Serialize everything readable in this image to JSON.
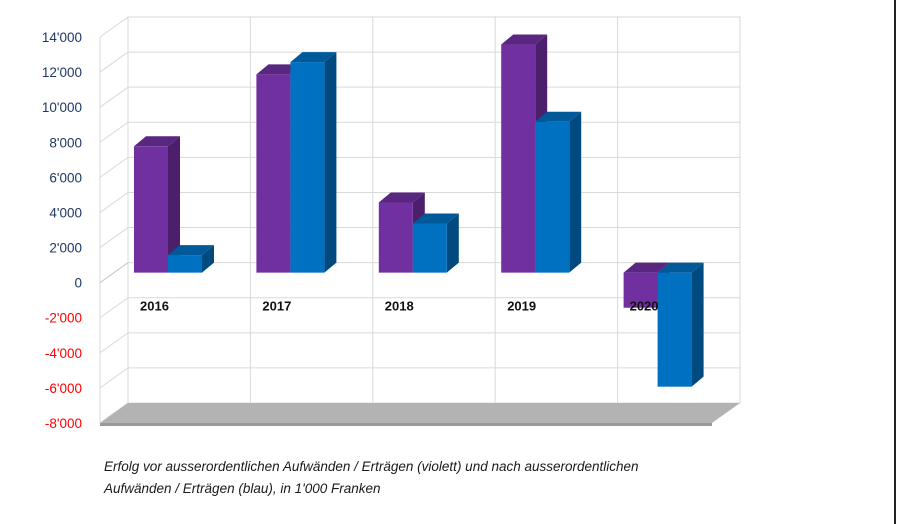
{
  "chart_data": {
    "type": "bar",
    "categories": [
      "2016",
      "2017",
      "2018",
      "2019",
      "2020"
    ],
    "series": [
      {
        "values": [
          7200,
          11300,
          4000,
          13000,
          -2000
        ]
      },
      {
        "values": [
          1000,
          12000,
          2800,
          8600,
          -6500
        ]
      }
    ],
    "ylim": [
      -8000,
      14000
    ],
    "yticks": [
      {
        "value": 14000,
        "label": "14'000"
      },
      {
        "value": 12000,
        "label": "12'000"
      },
      {
        "value": 10000,
        "label": "10'000"
      },
      {
        "value": 8000,
        "label": "8'000"
      },
      {
        "value": 6000,
        "label": "6'000"
      },
      {
        "value": 4000,
        "label": "4'000"
      },
      {
        "value": 2000,
        "label": "2'000"
      },
      {
        "value": 0,
        "label": "0"
      },
      {
        "value": -2000,
        "label": "-2'000"
      },
      {
        "value": -4000,
        "label": "-4'000"
      },
      {
        "value": -6000,
        "label": "-6'000"
      },
      {
        "value": -8000,
        "label": "-8'000"
      }
    ],
    "grid": true,
    "colors": {
      "series_front": [
        "#7030a0",
        "#0070c0"
      ],
      "series_top": [
        "#5a2780",
        "#005a9a"
      ],
      "series_side": [
        "#4b1f6b",
        "#004a80"
      ],
      "positive_tick": "#1f3864",
      "negative_tick": "#ff0000",
      "floor": "#b3b3b3"
    },
    "caption_lines": [
      "Erfolg vor ausserordentlichen Aufwänden / Erträgen (violett) und nach ausserordentlichen",
      "Aufwänden / Erträgen (blau), in 1'000 Franken"
    ]
  }
}
